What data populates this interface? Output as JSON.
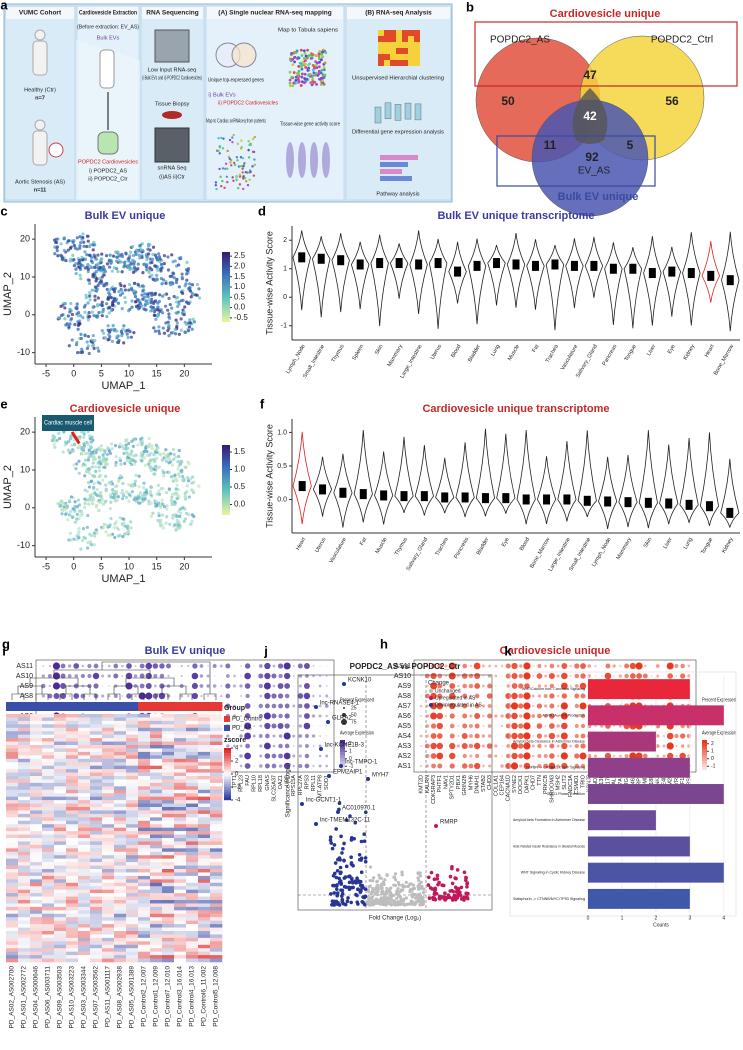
{
  "a": {
    "letter": "a",
    "columns": [
      "VUMC Cohort",
      "Cardiovesicle Extraction",
      "RNA Sequencing",
      "(A) Single nuclear RNA-seq mapping",
      "(B) RNA-seq Analysis"
    ],
    "texts": [
      "Healthy (Ctr)",
      "n=7",
      "Aortic Stenosis (AS)",
      "n=11",
      "(Before extraction: EV_AS)",
      "Bulk EVs",
      "POPDC2 Cardiovesicles",
      "i) POPDC2_AS",
      "ii) POPDC2_Ctr",
      "Low Input RNA-seq",
      "(i Bulk EVs and ii) POPDC2 Cardiovesicles)",
      "Tissue Biopsy",
      "snRNA Seq",
      "(i)AS ii)Ctr",
      "Unique top-expressed genes",
      "Map to Tabula sapiens",
      "i) Bulk EVs",
      "ii) POPDC2 Cardiovesicles",
      "Map to Cardiac snRNAseq from patients",
      "Tissue-wise gene activity score",
      "Unsupervised Hierarchial clustering",
      "Differential gene expression analysis",
      "Pathway analysis"
    ]
  },
  "b": {
    "letter": "b",
    "title": "Cardiovesicle unique",
    "sets": [
      "POPDC2_AS",
      "POPDC2_Ctrl",
      "EV_AS"
    ],
    "set_colors": [
      "#e0503c",
      "#f5d33c",
      "#4a56b0"
    ],
    "bottom": "Bulk EV unique",
    "counts": [
      50,
      47,
      56,
      42,
      11,
      5,
      92
    ]
  },
  "c": {
    "letter": "c",
    "title": "Bulk EV unique",
    "xlabel": "UMAP_1",
    "ylabel": "UMAP_2",
    "xlim": [
      -7,
      25
    ],
    "ylim": [
      -13,
      24
    ],
    "xticks": [
      -5,
      0,
      5,
      10,
      15,
      20
    ],
    "yticks": [
      -10,
      0,
      10,
      20
    ],
    "colorbar_lim": [
      -0.7,
      2.7
    ],
    "colorbar": [
      2.5,
      {
        "value": 2,
        "label": "2.0"
      },
      1.5,
      {
        "value": 1,
        "label": "1.0"
      },
      0.5,
      {
        "value": 0,
        "label": "0.0"
      },
      -0.5
    ]
  },
  "d": {
    "letter": "d",
    "title": "Bulk EV unique transcriptome",
    "ylabel": "Tissue-wise Activity Score",
    "ylim": [
      -1.5,
      2.5
    ],
    "yticks": [
      -1,
      0,
      1,
      2
    ],
    "categories": [
      "Lymph_Node",
      "Small_Intestine",
      "Thymus",
      "Spleen",
      "Skin",
      "Mammary",
      "Large_Intestine",
      "Uterus",
      "Blood",
      "Bladder",
      "Lung",
      "Muscle",
      "Fat",
      "Trachea",
      "Vasculature",
      "Salivary_Gland",
      "Pancreas",
      "Tongue",
      "Liver",
      "Eye",
      "Kidney",
      "Heart",
      "Bone_Marrow"
    ],
    "medians": [
      1.4,
      1.35,
      1.3,
      1.15,
      1.2,
      1.2,
      1.15,
      1.2,
      0.9,
      1.1,
      1.2,
      1.15,
      1.1,
      1.15,
      1.1,
      1.1,
      1.0,
      1.0,
      0.85,
      0.9,
      0.85,
      0.75,
      0.6
    ],
    "violin_colors": [
      "#222",
      "#222",
      "#222",
      "#222",
      "#222",
      "#222",
      "#222",
      "#222",
      "#222",
      "#222",
      "#222",
      "#222",
      "#222",
      "#222",
      "#222",
      "#222",
      "#222",
      "#222",
      "#222",
      "#222",
      "#222",
      "#e02020",
      "#222"
    ]
  },
  "e": {
    "letter": "e",
    "title": "Cardiovesicle unique",
    "callout": "Cardiac muscle cell",
    "xlabel": "UMAP_1",
    "ylabel": "UMAP_2",
    "xlim": [
      -7,
      25
    ],
    "ylim": [
      -13,
      24
    ],
    "xticks": [
      -5,
      0,
      5,
      10,
      15,
      20
    ],
    "yticks": [
      -10,
      0,
      10,
      20
    ],
    "colorbar_lim": [
      -0.3,
      1.7
    ],
    "colorbar": [
      1.5,
      {
        "value": 1,
        "label": "1.0"
      },
      0.5,
      {
        "value": 0,
        "label": "0.0"
      }
    ]
  },
  "f": {
    "letter": "f",
    "title": "Cardiovesicle unique transcriptome",
    "ylabel": "Tissue-wise Activity Score",
    "ylim": [
      -0.5,
      1.2
    ],
    "yticks": [
      {
        "value": 0,
        "label": "0.0"
      },
      0.5,
      {
        "value": 1,
        "label": "1.0"
      }
    ],
    "categories": [
      "Heart",
      "Uterus",
      "Vasculature",
      "Fat",
      "Muscle",
      "Thymus",
      "Salivary_Gland",
      "Trachea",
      "Pancreas",
      "Bladder",
      "Eye",
      "Blood",
      "Bone_Marrow",
      "Large_Intestine",
      "Small_Intestine",
      "Lymph_Node",
      "Mammary",
      "Skin",
      "Liver",
      "Lung",
      "Tongue",
      "Kidney"
    ],
    "medians": [
      0.2,
      0.15,
      0.1,
      0.08,
      0.06,
      0.05,
      0.05,
      0.03,
      0.03,
      0.02,
      0.02,
      0.0,
      0.0,
      0.0,
      -0.02,
      -0.03,
      -0.04,
      -0.05,
      -0.06,
      -0.08,
      -0.1,
      -0.2
    ],
    "violin_colors": [
      "#e02020",
      "#222",
      "#222",
      "#222",
      "#222",
      "#222",
      "#222",
      "#222",
      "#222",
      "#222",
      "#222",
      "#222",
      "#222",
      "#222",
      "#222",
      "#222",
      "#222",
      "#222",
      "#222",
      "#222",
      "#222",
      "#222"
    ]
  },
  "g": {
    "letter": "g",
    "title": "Bulk EV unique",
    "rows": [
      "AS11",
      "AS10",
      "AS9",
      "AS8",
      "AS7",
      "AS6",
      "AS5",
      "AS4",
      "AS3",
      "AS2",
      "AS1"
    ],
    "genes": [
      "HBB",
      "TMSB4X",
      "NPIPB5",
      "NRGN",
      "MT-CO1",
      "PF4",
      "ACTB",
      "ACTG1",
      "FTL",
      "PTMA",
      "RPS6",
      "RPL13",
      "RPS2",
      "SERF2",
      "EEF1A1",
      "MYL6",
      "B2M",
      "PPBP",
      "RPL19",
      "RPS18",
      "RPS19",
      "RPL34",
      "RPL28",
      "RPS27A",
      "TMSB10",
      "RPS8",
      "RPL41",
      "MYL12A",
      "RPL37",
      "TPT1",
      "RPL23",
      "FAU",
      "RPL10",
      "RPL18",
      "GNAS",
      "SLC25A37",
      "OAZ1",
      "UBB",
      "RPS15A",
      "RPL27A",
      "RPS3",
      "RPL11",
      "MT-ATP8",
      "SOD1"
    ],
    "low_color": "#e4e4f2",
    "high_color": "#4b2a9a",
    "size_title": "Percent Expressed",
    "sizes": [
      25,
      50,
      75
    ],
    "color_title": "Average Expression",
    "color_lim": [
      -1.5,
      2.5
    ],
    "color_ticks": [
      2,
      1,
      0,
      -1
    ]
  },
  "h": {
    "letter": "h",
    "title": "Cardiovesicle unique",
    "rows": [
      "AS11",
      "AS10",
      "AS9",
      "AS8",
      "AS7",
      "AS6",
      "AS5",
      "AS4",
      "AS3",
      "AS2",
      "AS1"
    ],
    "genes": [
      "KMT2D",
      "KALRN",
      "CDK5RAP3",
      "PHTF1",
      "NAV1",
      "SPTY2D1",
      "PBX1",
      "GRIN2B",
      "MYH6",
      "DNAH1",
      "STAB2",
      "CHD3",
      "COL1A1",
      "CEP164",
      "CACNA1D",
      "SYNE2",
      "DOCK1",
      "DAPK1",
      "CHD7",
      "TTN",
      "PRKCB",
      "SHROOM3",
      "MSH2",
      "SLIT2",
      "FNDC3A",
      "CSMD1",
      "TRIO",
      "KCNJ3",
      "CCND2",
      "UNC13B",
      "CEP170",
      "ST3GAL3",
      "COL27A1",
      "TPRG1",
      "ZNF462",
      "LRP1",
      "DMD",
      "MYO18B",
      "ANK2",
      "PDE4D",
      "RBM20",
      "RYR2",
      "ARHGEF11",
      "SORBS2"
    ],
    "low_color": "#fbe3dc",
    "high_color": "#e8371f",
    "size_title": "Percent Expressed",
    "sizes": [
      25,
      50,
      75
    ],
    "color_title": "Average Expression",
    "color_lim": [
      -1.5,
      2.5
    ],
    "color_ticks": [
      2,
      1,
      0,
      -1
    ]
  },
  "i": {
    "letter": "i",
    "group_title": "Group",
    "groups": [
      {
        "name": "PD_Contro",
        "color": "#e53935"
      },
      {
        "name": "PD_AS",
        "color": "#3a4fa8"
      }
    ],
    "zscore_title": "zscore",
    "zlim": [
      -4,
      4
    ],
    "zticks": [
      4,
      2,
      0,
      -2,
      -4
    ],
    "samples": [
      "PD_AS02_AS002700",
      "PD_AS01_AS002772",
      "PD_AS04_AS000646",
      "PD_AS06_AS003711",
      "PD_AS09_AS003503",
      "PD_AS10_AS003223",
      "PD_AS03_AS003344",
      "PD_AS07_AS003562",
      "PD_AS11_AS001117",
      "PD_AS08_AS002938",
      "PD_AS05_AS001389",
      "PD_Control2_12.007",
      "PD_Control1_12.009",
      "PD_Control7_12.010",
      "PD_Control3_16.014",
      "PD_Control4_16.013",
      "PD_Control6_11.002",
      "PD_Control5_12.008"
    ],
    "sample_group": [
      1,
      1,
      1,
      1,
      1,
      1,
      1,
      1,
      1,
      1,
      1,
      0,
      0,
      0,
      0,
      0,
      0,
      0
    ]
  },
  "j": {
    "letter": "j",
    "title": "POPDC2_AS vs POPDC2_Ctr",
    "xlabel": "Fold Change (Log₂)",
    "ylabel": "Significance (-Log₁₀)",
    "genes": [
      "KCNK10",
      "lnc-RNASE4-1",
      "GLRA2",
      "lnc-KCNE1B-3",
      "lnc-TMPO-1",
      "MYH7",
      "EPM2AIP1",
      "lnc-GCNT1-1",
      "AC010970.1",
      "lnc-TMEM132C-11",
      "RMRP"
    ],
    "legend_title": "Change",
    "legend": [
      {
        "name": "Unchanged",
        "color": "#bdbdbd"
      },
      {
        "name": "Upregulated in AS",
        "color": "#c2185b"
      },
      {
        "name": "Downregulated in AS",
        "color": "#283593"
      }
    ]
  },
  "k": {
    "letter": "k",
    "xlabel": "Counts",
    "xlim": [
      0,
      4.3
    ],
    "xticks": [
      0,
      1,
      2,
      3,
      4
    ],
    "categories": [
      "WNT/Calcium non- Canonical Signaling",
      "ADRA1A -> Il-6 Production",
      "Amyloid beta Clearance in Alzheimer Disease",
      "TGFBR -> CREB/ELK SRF Signaling",
      "G0/G1 Phase Transition",
      "Amyloid beta Formation in Alzheimer Disease",
      "AGE Related Insulin Resistance in Skeletal Muscles",
      "WNT Signaling in Cyclic Kidney Disease",
      "Statsphorin -> CTNNB/MYC/TP53 Signaling"
    ],
    "values": [
      3,
      4,
      2,
      3,
      4,
      2,
      3,
      4,
      3
    ],
    "colors": [
      "#e8283a",
      "#c8306a",
      "#a8387a",
      "#90408a",
      "#7a4690",
      "#6a4c98",
      "#5a509e",
      "#4c54a4",
      "#3e58aa"
    ]
  }
}
